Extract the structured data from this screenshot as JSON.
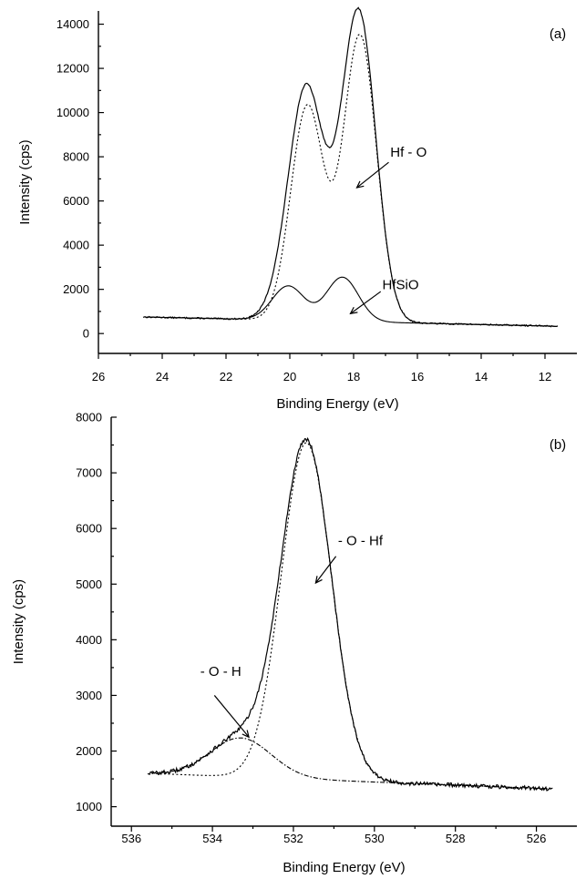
{
  "chart_data": [
    {
      "type": "line",
      "panel_label": "(a)",
      "xlabel": "Binding Energy (eV)",
      "ylabel": "Intensity (cps)",
      "xlim": [
        26,
        11
      ],
      "ylim": [
        -900,
        14600
      ],
      "x_reversed": true,
      "xticks": [
        26,
        24,
        22,
        20,
        18,
        16,
        14,
        12
      ],
      "yticks": [
        0,
        2000,
        4000,
        6000,
        8000,
        10000,
        12000,
        14000
      ],
      "background": {
        "x_start": 24.6,
        "x_end": 11.6,
        "y_start": 750,
        "y_end": 330
      },
      "components": [
        {
          "name": "Hf - O",
          "peaks": [
            {
              "center": 19.45,
              "height": 9700,
              "width": 0.52
            },
            {
              "center": 17.8,
              "height": 12950,
              "width": 0.52
            }
          ]
        },
        {
          "name": "HfSiO",
          "peaks": [
            {
              "center": 20.05,
              "height": 1550,
              "width": 0.5
            },
            {
              "center": 18.35,
              "height": 2000,
              "width": 0.5
            }
          ]
        }
      ],
      "annotations": [
        {
          "text": "Hf - O",
          "text_at": [
            16.85,
            8000
          ],
          "arrow_from": [
            16.9,
            7750
          ],
          "arrow_to": [
            17.9,
            6600
          ]
        },
        {
          "text": "HfSiO",
          "text_at": [
            17.1,
            2000
          ],
          "arrow_from": [
            17.15,
            1900
          ],
          "arrow_to": [
            18.1,
            900
          ]
        }
      ]
    },
    {
      "type": "line",
      "panel_label": "(b)",
      "xlabel": "Binding Energy (eV)",
      "ylabel": "Intensity (cps)",
      "xlim": [
        536.5,
        525
      ],
      "ylim": [
        650,
        8000
      ],
      "x_reversed": true,
      "xticks": [
        536,
        534,
        532,
        530,
        528,
        526
      ],
      "yticks": [
        1000,
        2000,
        3000,
        4000,
        5000,
        6000,
        7000,
        8000
      ],
      "background": {
        "x_start": 535.6,
        "x_end": 525.6,
        "y_start": 1600,
        "y_end": 1320
      },
      "components": [
        {
          "name": "- O - Hf",
          "peaks": [
            {
              "center": 531.68,
              "height": 6050,
              "width": 0.62
            }
          ]
        },
        {
          "name": "- O - H",
          "peaks": [
            {
              "center": 533.3,
              "height": 700,
              "width": 0.75
            }
          ]
        }
      ],
      "annotations": [
        {
          "text": "- O - Hf",
          "text_at": [
            530.9,
            5700
          ],
          "arrow_from": [
            530.95,
            5500
          ],
          "arrow_to": [
            531.45,
            5020
          ]
        },
        {
          "text": "- O - H",
          "text_at": [
            534.3,
            3350
          ],
          "arrow_from": [
            533.95,
            3000
          ],
          "arrow_to": [
            533.1,
            2250
          ]
        }
      ]
    }
  ]
}
